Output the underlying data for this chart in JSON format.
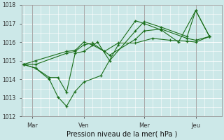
{
  "xlabel": "Pression niveau de la mer( hPa )",
  "bg_color": "#cce8e8",
  "grid_color": "#ffffff",
  "line_color": "#1a6e1a",
  "ylim": [
    1012,
    1018
  ],
  "yticks": [
    1012,
    1013,
    1014,
    1015,
    1016,
    1017,
    1018
  ],
  "xtick_labels": [
    "Mar",
    "Ven",
    "Mer",
    "Jeu"
  ],
  "xtick_positions": [
    0.5,
    3.5,
    7.0,
    10.0
  ],
  "vline_positions": [
    0.5,
    3.5,
    7.0,
    10.0
  ],
  "xlim": [
    -0.1,
    11.5
  ],
  "series_x": [
    [
      0.0,
      0.7,
      1.5,
      2.0,
      2.5,
      3.0,
      3.5,
      4.5,
      5.5,
      6.5,
      7.0,
      8.0,
      9.0,
      10.0,
      10.8
    ],
    [
      0.0,
      0.7,
      1.5,
      2.0,
      2.5,
      3.0,
      3.5,
      4.3,
      5.0,
      6.5,
      7.0,
      8.0,
      9.5,
      10.0,
      10.8
    ],
    [
      0.0,
      0.7,
      2.5,
      3.0,
      3.5,
      4.0,
      5.0,
      6.5,
      7.0,
      8.0,
      9.5,
      10.0,
      10.8
    ],
    [
      0.0,
      0.7,
      2.5,
      3.0,
      3.5,
      4.0,
      4.7,
      5.5,
      6.5,
      7.5,
      8.5,
      9.5,
      10.0,
      10.8
    ]
  ],
  "series_y": [
    [
      1014.8,
      1014.6,
      1014.0,
      1013.05,
      1012.55,
      1013.35,
      1013.85,
      1014.2,
      1015.85,
      1017.15,
      1017.0,
      1016.65,
      1016.0,
      1017.7,
      1016.3
    ],
    [
      1014.8,
      1014.6,
      1014.1,
      1014.1,
      1013.3,
      1015.4,
      1015.5,
      1016.0,
      1015.0,
      1016.6,
      1017.1,
      1016.8,
      1016.3,
      1017.7,
      1016.3
    ],
    [
      1014.8,
      1014.8,
      1015.4,
      1015.5,
      1015.85,
      1015.95,
      1015.3,
      1016.15,
      1016.6,
      1016.7,
      1016.2,
      1016.1,
      1016.3
    ],
    [
      1014.8,
      1015.0,
      1015.5,
      1015.55,
      1016.0,
      1015.85,
      1015.5,
      1015.95,
      1015.95,
      1016.2,
      1016.1,
      1016.05,
      1016.0,
      1016.3
    ]
  ]
}
